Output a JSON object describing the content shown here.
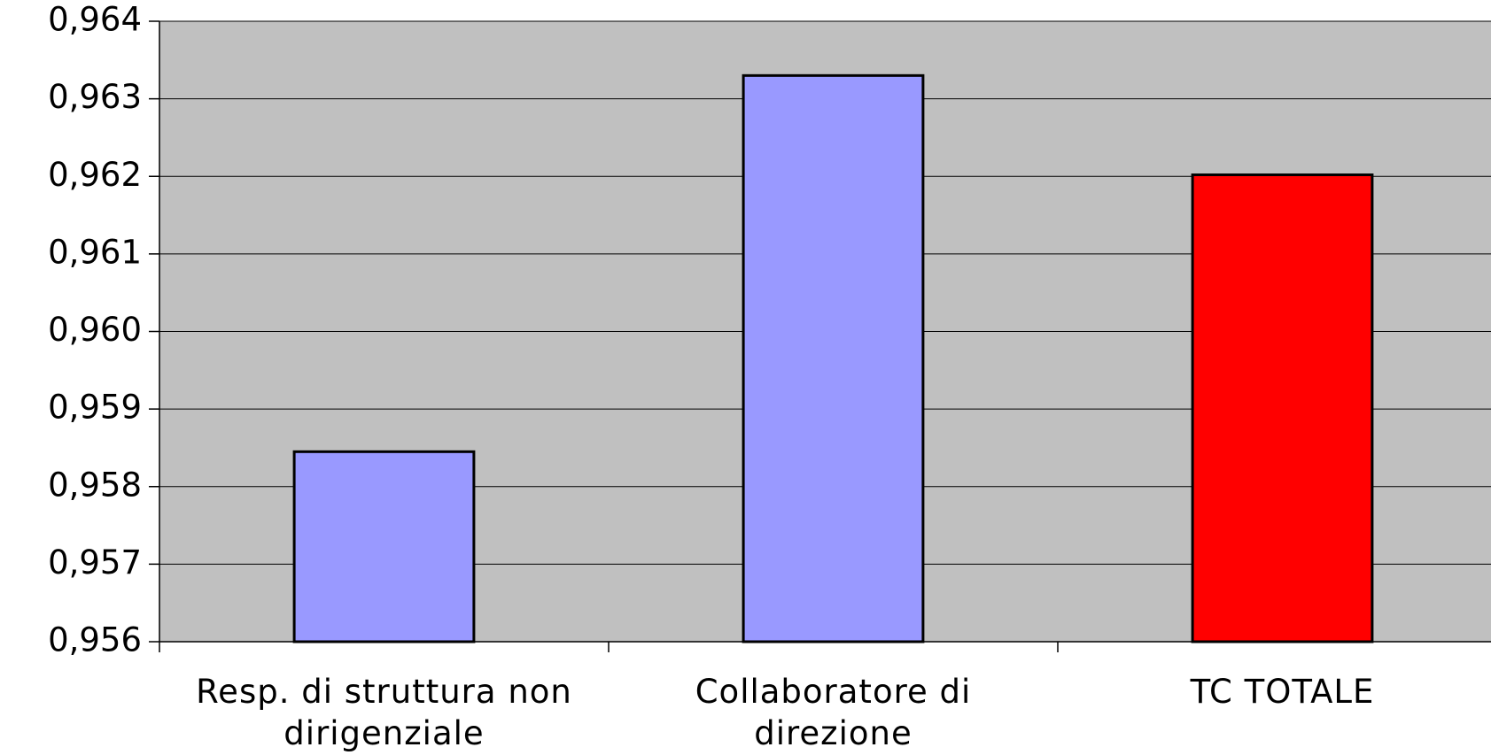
{
  "chart_data": {
    "type": "bar",
    "categories": [
      "Resp. di struttura non dirigenziale",
      "Collaboratore di direzione",
      "TC TOTALE"
    ],
    "values": [
      0.95845,
      0.9633,
      0.96202
    ],
    "colors": [
      "#9999ff",
      "#9999ff",
      "#ff0000"
    ],
    "ylim": [
      0.956,
      0.964
    ],
    "yticks": [
      {
        "value": 0.956,
        "label": "0,956"
      },
      {
        "value": 0.957,
        "label": "0,957"
      },
      {
        "value": 0.958,
        "label": "0,958"
      },
      {
        "value": 0.959,
        "label": "0,959"
      },
      {
        "value": 0.96,
        "label": "0,960"
      },
      {
        "value": 0.961,
        "label": "0,961"
      },
      {
        "value": 0.962,
        "label": "0,962"
      },
      {
        "value": 0.963,
        "label": "0,963"
      },
      {
        "value": 0.964,
        "label": "0,964"
      }
    ],
    "grid": true,
    "background": "#c0c0c0"
  }
}
